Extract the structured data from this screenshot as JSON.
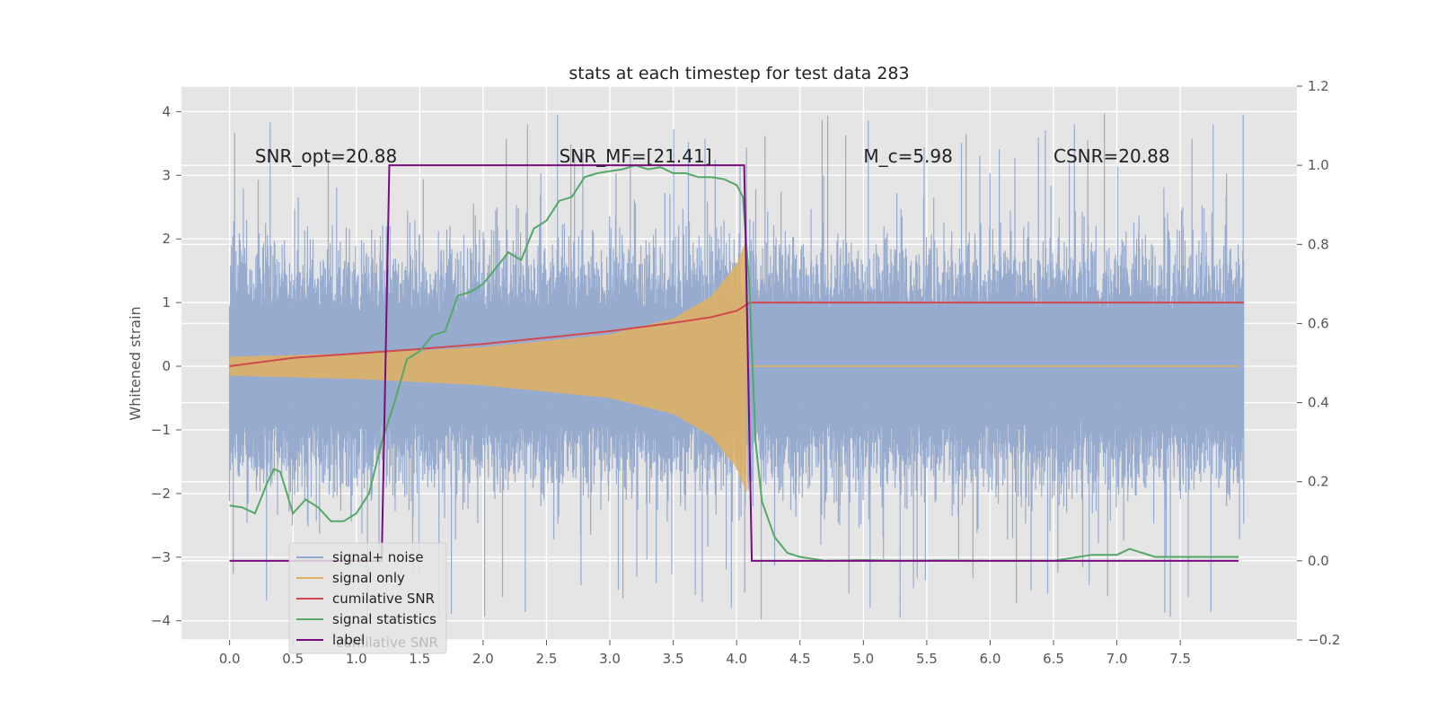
{
  "chart_data": {
    "type": "line",
    "title": "stats at each timestep for test data 283",
    "ylabel": "Whitened strain",
    "y2label": "",
    "xlim": [
      -0.38,
      8.42
    ],
    "ylim": [
      -4.3,
      4.4
    ],
    "y2lim": [
      -0.2,
      1.2
    ],
    "x_ticks": [
      0.0,
      0.5,
      1.0,
      1.5,
      2.0,
      2.5,
      3.0,
      3.5,
      4.0,
      4.5,
      5.0,
      5.5,
      6.0,
      6.5,
      7.0,
      7.5
    ],
    "y_ticks": [
      -4,
      -3,
      -2,
      -1,
      0,
      1,
      2,
      3,
      4
    ],
    "y2_ticks": [
      -0.2,
      0.0,
      0.2,
      0.4,
      0.6,
      0.8,
      1.0,
      1.2
    ],
    "grid": true,
    "legend_position": "lower-left",
    "annotations": [
      {
        "text": "SNR_opt=20.88",
        "x": 0.2,
        "y": 3.2
      },
      {
        "text": "SNR_MF=[21.41]",
        "x": 2.6,
        "y": 3.2
      },
      {
        "text": "M_c=5.98",
        "x": 5.0,
        "y": 3.2
      },
      {
        "text": "CSNR=20.88",
        "x": 6.5,
        "y": 3.2
      }
    ],
    "legend_overlap_text": "cumilative SNR",
    "series": [
      {
        "name": "signal+ noise",
        "color": "#92a8cd",
        "axis": "left",
        "kind": "noise-band",
        "x_range": [
          0.0,
          8.0
        ],
        "typical_amplitude": 1.9,
        "peak_amplitude": 4.0
      },
      {
        "name": "signal only",
        "color": "#e0b060",
        "axis": "left",
        "kind": "chirp-band",
        "x_range": [
          0.0,
          4.08
        ],
        "envelope": [
          [
            0.0,
            0.15
          ],
          [
            1.0,
            0.2
          ],
          [
            2.0,
            0.3
          ],
          [
            3.0,
            0.5
          ],
          [
            3.5,
            0.75
          ],
          [
            3.8,
            1.1
          ],
          [
            4.0,
            1.6
          ],
          [
            4.08,
            2.0
          ]
        ]
      },
      {
        "name": "cumilative SNR",
        "color": "#d1494e",
        "axis": "left",
        "x": [
          0.0,
          0.5,
          1.0,
          1.5,
          2.0,
          2.5,
          3.0,
          3.5,
          3.8,
          4.0,
          4.05,
          4.1,
          8.0
        ],
        "values": [
          0.0,
          0.13,
          0.2,
          0.27,
          0.35,
          0.45,
          0.55,
          0.68,
          0.77,
          0.87,
          0.93,
          1.0,
          1.0
        ]
      },
      {
        "name": "signal statistics",
        "color": "#55a868",
        "axis": "right",
        "x": [
          0.0,
          0.1,
          0.2,
          0.3,
          0.35,
          0.4,
          0.5,
          0.6,
          0.7,
          0.8,
          0.9,
          1.0,
          1.1,
          1.2,
          1.3,
          1.4,
          1.5,
          1.6,
          1.7,
          1.8,
          1.9,
          2.0,
          2.1,
          2.2,
          2.3,
          2.4,
          2.5,
          2.6,
          2.7,
          2.8,
          2.9,
          3.0,
          3.1,
          3.2,
          3.3,
          3.4,
          3.5,
          3.6,
          3.7,
          3.8,
          3.9,
          4.0,
          4.05,
          4.1,
          4.15,
          4.2,
          4.3,
          4.4,
          4.5,
          4.7,
          5.0,
          5.3,
          5.6,
          6.0,
          6.5,
          6.8,
          7.0,
          7.1,
          7.2,
          7.3,
          7.5,
          7.7,
          7.9,
          7.96
        ],
        "values": [
          0.14,
          0.135,
          0.12,
          0.2,
          0.232,
          0.225,
          0.12,
          0.155,
          0.135,
          0.1,
          0.1,
          0.12,
          0.17,
          0.3,
          0.4,
          0.51,
          0.53,
          0.57,
          0.58,
          0.67,
          0.68,
          0.7,
          0.74,
          0.78,
          0.76,
          0.84,
          0.86,
          0.91,
          0.92,
          0.97,
          0.98,
          0.985,
          0.99,
          1.0,
          0.99,
          0.995,
          0.98,
          0.98,
          0.97,
          0.97,
          0.965,
          0.95,
          0.92,
          0.7,
          0.3,
          0.15,
          0.06,
          0.02,
          0.01,
          0.0,
          0.002,
          0.0,
          0.001,
          0.0,
          0.0,
          0.015,
          0.015,
          0.03,
          0.02,
          0.01,
          0.01,
          0.01,
          0.01,
          0.01
        ]
      },
      {
        "name": "label",
        "color": "#7b0c7f",
        "axis": "right",
        "x": [
          0.0,
          1.2,
          1.26,
          4.06,
          4.12,
          7.96
        ],
        "values": [
          0.0,
          0.0,
          1.0,
          1.0,
          0.0,
          0.0
        ]
      }
    ]
  }
}
